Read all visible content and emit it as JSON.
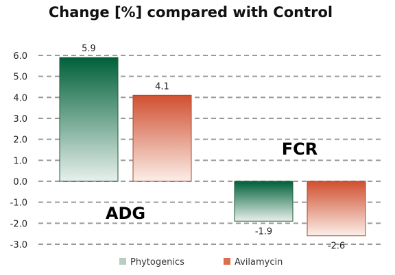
{
  "chart_data": {
    "type": "bar",
    "title": "Change [%] compared with Control",
    "xlabel": "",
    "ylabel": "",
    "categories": [
      "ADG",
      "FCR"
    ],
    "series": [
      {
        "name": "Phytogenics",
        "values": [
          5.9,
          -1.9
        ],
        "value_labels": [
          "5.9",
          "-1.9"
        ]
      },
      {
        "name": "Avilamycin",
        "values": [
          4.1,
          -2.6
        ],
        "value_labels": [
          "4.1",
          "-2.6"
        ]
      }
    ],
    "ylim": [
      -3.0,
      6.0
    ],
    "yticks": [
      6.0,
      5.0,
      4.0,
      3.0,
      2.0,
      1.0,
      0.0,
      -1.0,
      -2.0,
      -3.0
    ],
    "ytick_labels": [
      "6.0",
      "5.0",
      "4.0",
      "3.0",
      "2.0",
      "1.0",
      "0.0",
      "-1.0",
      "-2.0",
      "-3.0"
    ],
    "grid": true,
    "legend_position": "bottom",
    "colors": {
      "phytogenics_dark": "#00603a",
      "phytogenics_light": "#e8f0ec",
      "phytogenics_legend": "#b8ccc0",
      "avilamycin_dark": "#d05030",
      "avilamycin_light": "#fbeee8",
      "avilamycin_legend": "#d8704e",
      "grid": "#999999"
    }
  }
}
